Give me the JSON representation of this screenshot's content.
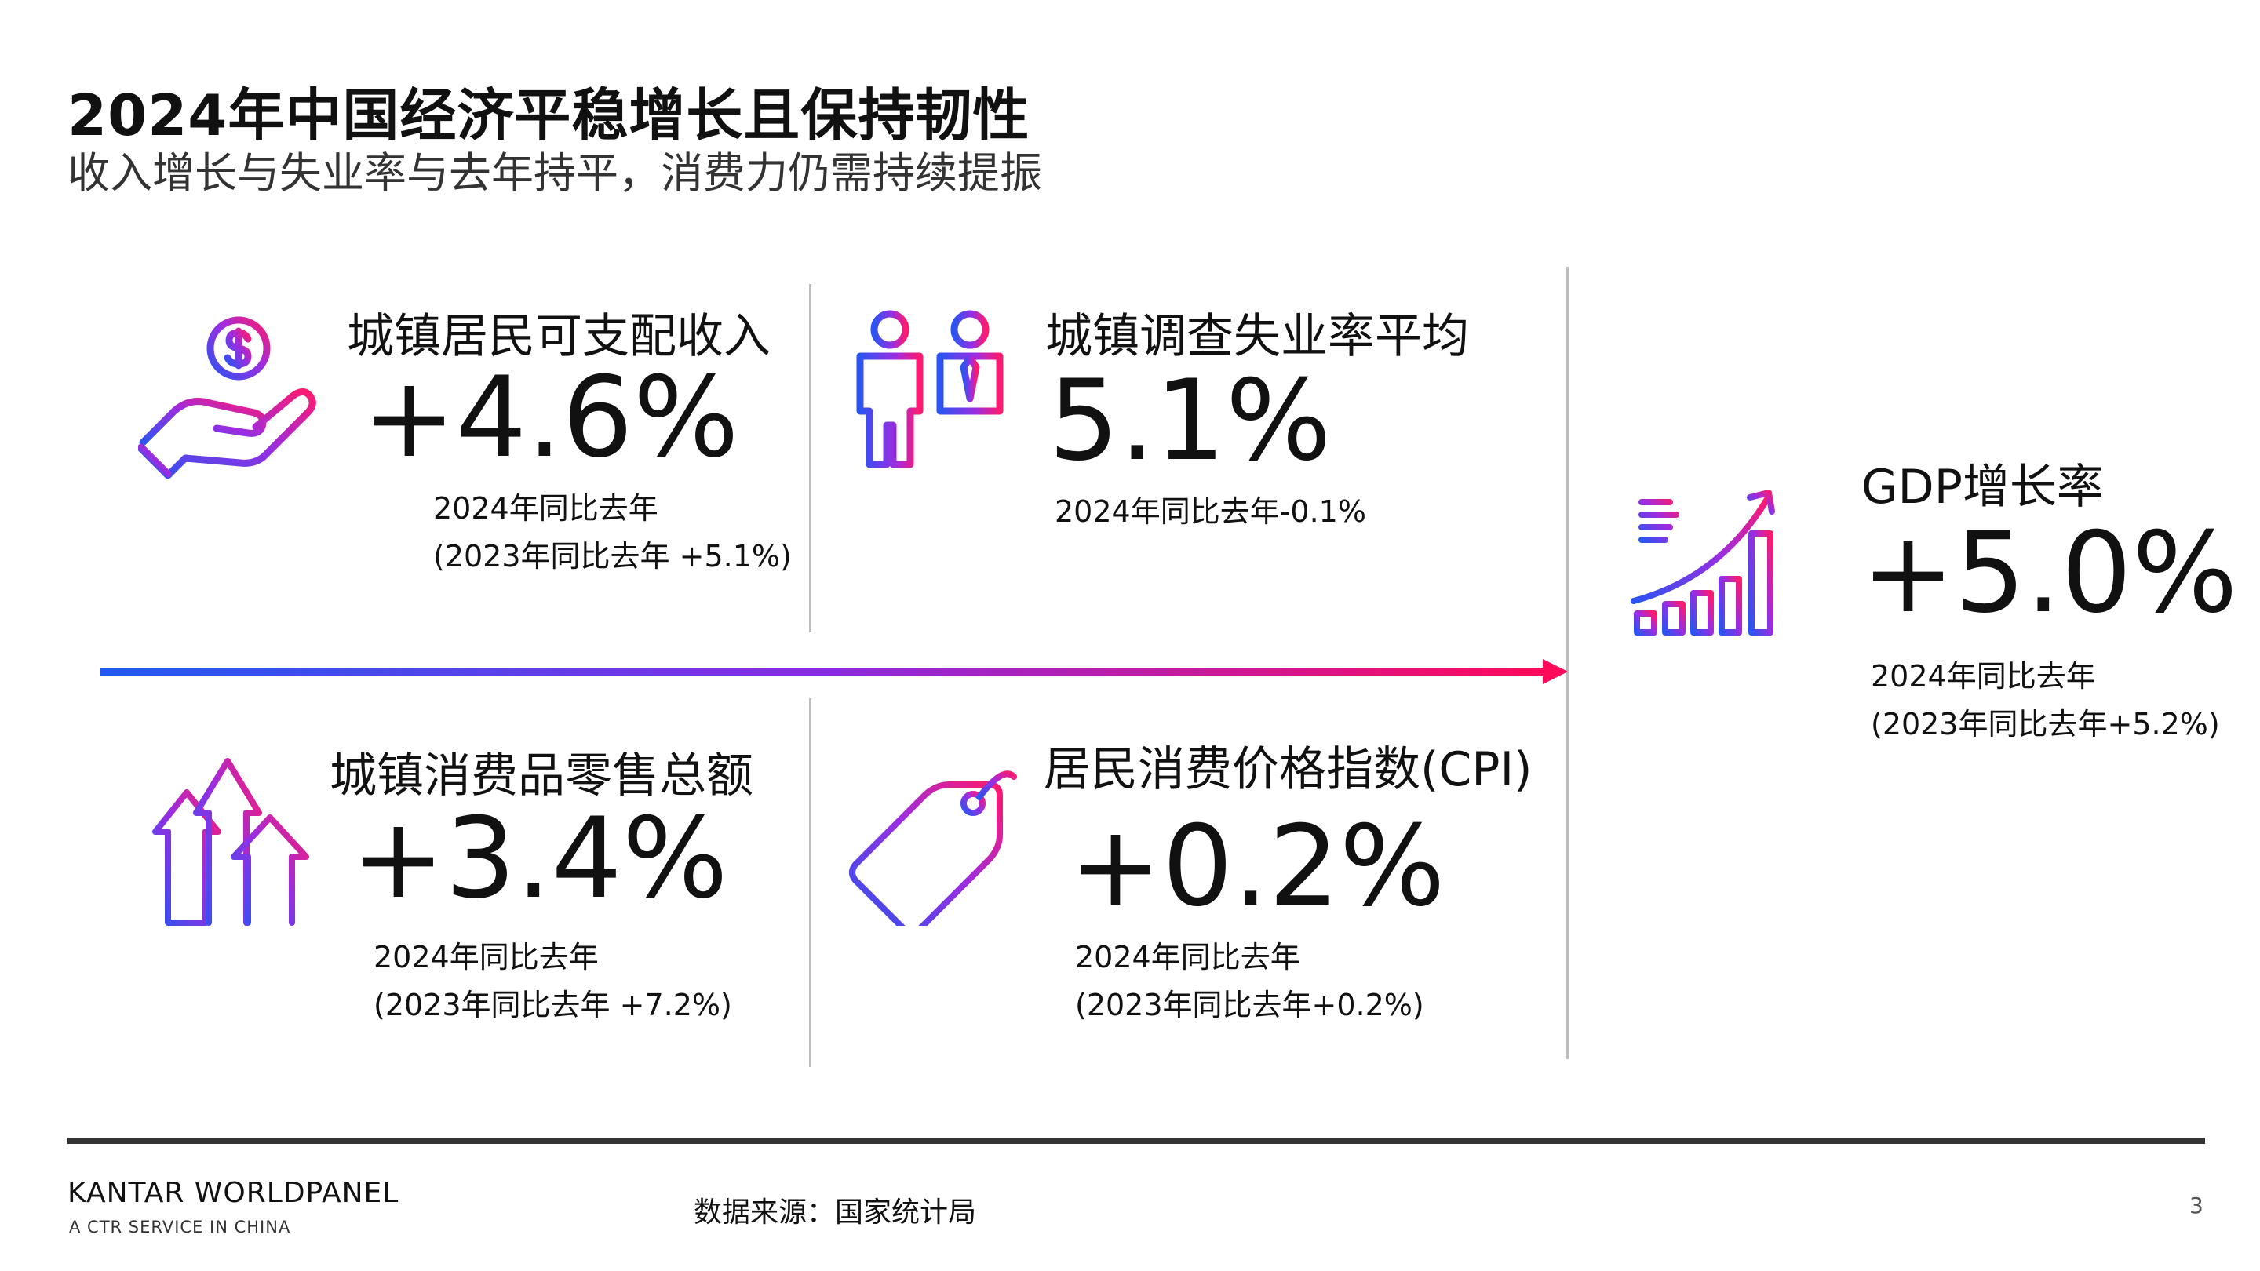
{
  "header": {
    "title": "2024年中国经济平稳增长且保持韧性",
    "subtitle": "收入增长与失业率与去年持平，消费力仍需持续提振"
  },
  "metrics": {
    "income": {
      "label": "城镇居民可支配收入",
      "value": "+4.6%",
      "note_line1": "2024年同比去年",
      "note_line2": "(2023年同比去年 +5.1%)",
      "icon": "hand-coin-icon"
    },
    "unemployment": {
      "label": "城镇调查失业率平均",
      "value": "5.1%",
      "note_line1": "2024年同比去年-0.1%",
      "icon": "workers-icon"
    },
    "gdp": {
      "label": "GDP增长率",
      "value": "+5.0%",
      "note_line1": "2024年同比去年",
      "note_line2": "(2023年同比去年+5.2%)",
      "icon": "growth-chart-icon"
    },
    "retail": {
      "label": "城镇消费品零售总额",
      "value": "+3.4%",
      "note_line1": "2024年同比去年",
      "note_line2": "(2023年同比去年 +7.2%)",
      "icon": "up-arrows-icon"
    },
    "cpi": {
      "label": "居民消费价格指数(CPI)",
      "value": "+0.2%",
      "note_line1": "2024年同比去年",
      "note_line2": "(2023年同比去年+0.2%)",
      "icon": "price-tag-icon"
    }
  },
  "footer": {
    "brand": "KANTAR WORLDPANEL",
    "brand_sub": "A CTR SERVICE IN CHINA",
    "source": "数据来源：国家统计局",
    "page": "3"
  },
  "colors": {
    "gradient_start": "#1f5bf0",
    "gradient_mid": "#8a2be2",
    "gradient_end": "#ff0a5a"
  }
}
